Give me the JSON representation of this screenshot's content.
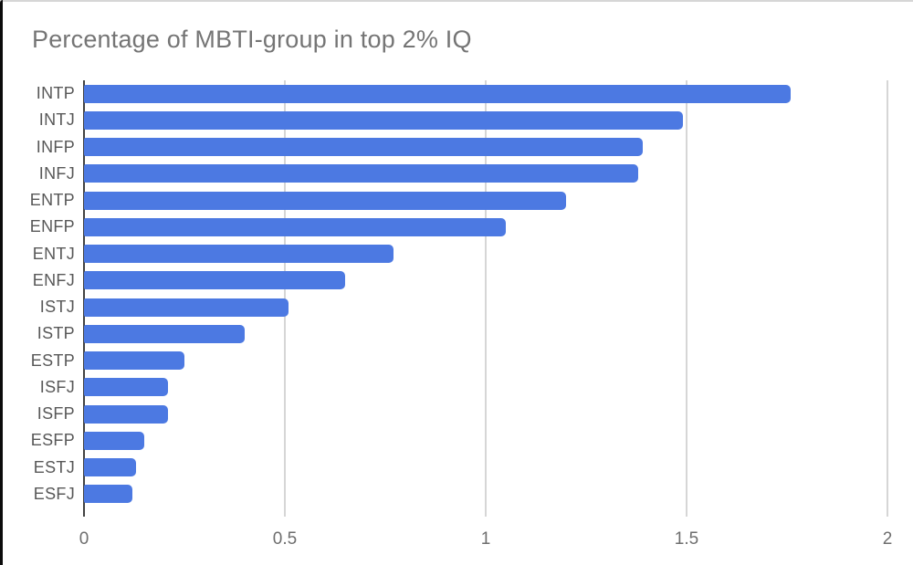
{
  "frame": {
    "edge_color": "#0b0b0b",
    "top_line_color": "#d6d6d6"
  },
  "chart_data": {
    "type": "bar",
    "orientation": "horizontal",
    "title": "Percentage of MBTI-group in top 2% IQ",
    "categories": [
      "INTP",
      "INTJ",
      "INFP",
      "INFJ",
      "ENTP",
      "ENFP",
      "ENTJ",
      "ENFJ",
      "ISTJ",
      "ISTP",
      "ESTP",
      "ISFJ",
      "ISFP",
      "ESFP",
      "ESTJ",
      "ESFJ"
    ],
    "values": [
      1.76,
      1.49,
      1.39,
      1.38,
      1.2,
      1.05,
      0.77,
      0.65,
      0.51,
      0.4,
      0.25,
      0.21,
      0.21,
      0.15,
      0.13,
      0.12
    ],
    "xlabel": "",
    "ylabel": "",
    "xlim": [
      0,
      2
    ],
    "x_ticks": [
      0,
      0.5,
      1,
      1.5,
      2
    ],
    "x_tick_labels": [
      "0",
      "0.5",
      "1",
      "1.5",
      "2"
    ],
    "grid": true,
    "legend": "none",
    "bar_color": "#4c79e2",
    "gridline_color": "#d6d6d6",
    "axis_line_color": "#424242",
    "title_color": "#757575",
    "tick_label_color": "#6e6e6e"
  }
}
